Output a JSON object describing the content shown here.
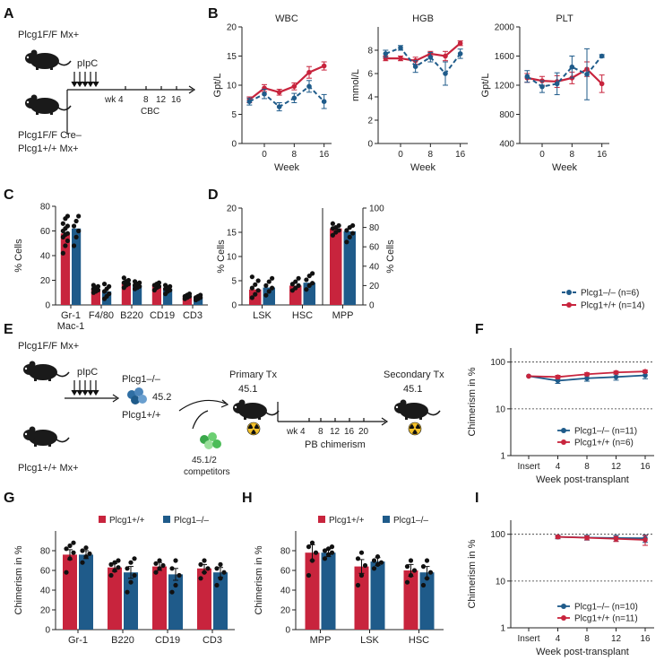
{
  "colors": {
    "red": "#c8243d",
    "blue": "#1f5b8a",
    "dot": "#111111",
    "bg": "#ffffff"
  },
  "icons": [
    "mouse-icon",
    "injection-arrows-icon",
    "cell-cluster-icon",
    "radiation-icon"
  ],
  "panel_letters": [
    "A",
    "B",
    "C",
    "D",
    "E",
    "F",
    "G",
    "H",
    "I"
  ],
  "panelA": {
    "mouse1_label": "Plcg1F/F Mx+",
    "treatment": "pIpC",
    "timeline_ticks": [
      "wk 4",
      "8",
      "12",
      "16"
    ],
    "readout": "CBC",
    "mouse2_label_line1": "Plcg1F/F Cre–",
    "mouse2_label_line2": "Plcg1+/+ Mx+"
  },
  "panelE": {
    "mouse1_label": "Plcg1F/F Mx+",
    "mouse2_label": "Plcg1+/+ Mx+",
    "treatment": "pIpC",
    "cells_top": "Plcg1–/–",
    "cells_bottom": "Plcg1+/+",
    "donor_marker": "45.2",
    "competitor_line1": "45.1/2",
    "competitor_line2": "competitors",
    "primary_title": "Primary Tx",
    "primary_marker": "45.1",
    "timeline_ticks": [
      "wk 4",
      "8",
      "12",
      "16",
      "20"
    ],
    "readout": "PB chimerism",
    "secondary_title": "Secondary Tx",
    "secondary_marker": "45.1"
  },
  "chart_data": [
    {
      "id": "B-WBC",
      "type": "line",
      "title": "WBC",
      "xlabel": "Week",
      "ylabel": "Gpt/L",
      "x": [
        -4,
        0,
        4,
        8,
        12,
        16
      ],
      "xticks": [
        0,
        8,
        16
      ],
      "ylim": [
        0,
        20
      ],
      "yticks": [
        0,
        5,
        10,
        15,
        20
      ],
      "series": [
        {
          "name": "Plcg1–/–",
          "values": [
            7.2,
            8.5,
            6.3,
            7.8,
            9.8,
            7.2
          ],
          "err": [
            0.6,
            0.8,
            0.7,
            0.8,
            1.0,
            1.2
          ]
        },
        {
          "name": "Plcg1+/+",
          "values": [
            7.5,
            9.5,
            8.8,
            9.8,
            12.2,
            13.3
          ],
          "err": [
            0.5,
            0.6,
            0.5,
            0.6,
            1.0,
            0.7
          ]
        }
      ]
    },
    {
      "id": "B-HGB",
      "type": "line",
      "title": "HGB",
      "xlabel": "Week",
      "ylabel": "mmol/L",
      "x": [
        -4,
        0,
        4,
        8,
        12,
        16
      ],
      "xticks": [
        0,
        8,
        16
      ],
      "ylim": [
        0,
        10
      ],
      "yticks": [
        0,
        2,
        4,
        6,
        8
      ],
      "series": [
        {
          "name": "Plcg1–/–",
          "values": [
            7.7,
            8.2,
            6.6,
            7.4,
            6.0,
            7.7
          ],
          "err": [
            0.3,
            0.2,
            0.5,
            0.4,
            1.0,
            0.4
          ]
        },
        {
          "name": "Plcg1+/+",
          "values": [
            7.3,
            7.3,
            7.1,
            7.7,
            7.5,
            8.6
          ],
          "err": [
            0.2,
            0.2,
            0.3,
            0.2,
            0.4,
            0.2
          ]
        }
      ]
    },
    {
      "id": "B-PLT",
      "type": "line",
      "title": "PLT",
      "xlabel": "Week",
      "ylabel": "Gpt/L",
      "x": [
        -4,
        0,
        4,
        8,
        12,
        16
      ],
      "xticks": [
        0,
        8,
        16
      ],
      "ylim": [
        400,
        2000
      ],
      "yticks": [
        400,
        800,
        1200,
        1600,
        2000
      ],
      "series": [
        {
          "name": "Plcg1–/–",
          "values": [
            1320,
            1180,
            1220,
            1450,
            1350,
            1600
          ],
          "err": [
            80,
            80,
            150,
            150,
            350,
            20
          ]
        },
        {
          "name": "Plcg1+/+",
          "values": [
            1300,
            1260,
            1250,
            1300,
            1420,
            1220
          ],
          "err": [
            60,
            60,
            80,
            80,
            100,
            120
          ]
        }
      ],
      "legend": [
        "Plcg1–/– (n=6)",
        "Plcg1+/+ (n=14)"
      ],
      "legend_position": "bottom-right"
    },
    {
      "id": "C",
      "type": "bar",
      "ylabel": "% Cells",
      "ylim": [
        0,
        80
      ],
      "yticks": [
        0,
        20,
        40,
        60,
        80
      ],
      "categories": [
        "Gr-1 Mac-1",
        "F4/80",
        "B220",
        "CD19",
        "CD3"
      ],
      "category_lines": [
        [
          "Gr-1",
          "Mac-1"
        ],
        [
          "F4/80"
        ],
        [
          "B220"
        ],
        [
          "CD19"
        ],
        [
          "CD3"
        ]
      ],
      "series": [
        {
          "name": "Plcg1+/+",
          "values": [
            58,
            13,
            18,
            16,
            7
          ]
        },
        {
          "name": "Plcg1–/–",
          "values": [
            62,
            11,
            16,
            13,
            6
          ]
        }
      ],
      "points": [
        [
          [
            42,
            48,
            52,
            55,
            57,
            58,
            60,
            62,
            64,
            66,
            70,
            72
          ],
          [
            48,
            55,
            60,
            64,
            68,
            72
          ]
        ],
        [
          [
            10,
            11,
            12,
            13,
            14,
            15,
            16
          ],
          [
            5,
            7,
            9,
            11,
            13,
            15,
            17
          ]
        ],
        [
          [
            14,
            16,
            17,
            18,
            19,
            20,
            22
          ],
          [
            13,
            14,
            15,
            16,
            17,
            18,
            19
          ]
        ],
        [
          [
            12,
            14,
            15,
            16,
            17,
            18
          ],
          [
            9,
            11,
            12,
            13,
            14,
            15,
            16
          ]
        ],
        [
          [
            5,
            6,
            7,
            7,
            8,
            9
          ],
          [
            4,
            5,
            6,
            6,
            7,
            8
          ]
        ]
      ]
    },
    {
      "id": "D",
      "type": "bar",
      "ylabel": "% Cells",
      "ylim": [
        0,
        20
      ],
      "yticks": [
        0,
        5,
        10,
        15,
        20
      ],
      "ylabel_right": "% Cells",
      "ylim_right": [
        0,
        100
      ],
      "yticks_right": [
        0,
        20,
        40,
        60,
        80,
        100
      ],
      "categories": [
        "LSK",
        "HSC",
        "MPP"
      ],
      "series": [
        {
          "name": "Plcg1+/+",
          "values": [
            3.2,
            4.0,
            79
          ]
        },
        {
          "name": "Plcg1–/–",
          "values": [
            3.6,
            4.6,
            76
          ]
        }
      ],
      "points": [
        [
          [
            1.5,
            2.2,
            3.0,
            3.5,
            4.2,
            5.0,
            5.8
          ],
          [
            2.0,
            2.8,
            3.5,
            4.0,
            4.8,
            5.5
          ]
        ],
        [
          [
            3.0,
            3.5,
            4.0,
            4.3,
            4.8,
            5.5
          ],
          [
            3.2,
            4.0,
            4.5,
            5.2,
            6.0,
            6.5
          ]
        ],
        [
          [
            72,
            75,
            77,
            79,
            80,
            82,
            84
          ],
          [
            65,
            70,
            74,
            77,
            80,
            82
          ]
        ]
      ]
    },
    {
      "id": "F",
      "type": "line",
      "xlabel": "Week post-transplant",
      "ylabel": "Chimerism in %",
      "categories": [
        "Insert",
        "4",
        "8",
        "12",
        "16"
      ],
      "yscale": "log",
      "ylim": [
        1,
        100
      ],
      "yticks": [
        1,
        10,
        100
      ],
      "reference_lines": [
        10,
        100
      ],
      "series": [
        {
          "name": "Plcg1–/–",
          "values": [
            50,
            40,
            45,
            48,
            52
          ],
          "err": [
            0,
            5,
            6,
            7,
            8
          ]
        },
        {
          "name": "Plcg1+/+",
          "values": [
            50,
            48,
            55,
            60,
            63
          ],
          "err": [
            0,
            4,
            4,
            4,
            4
          ]
        }
      ],
      "legend": [
        "Plcg1–/– (n=11)",
        "Plcg1+/+ (n=6)"
      ],
      "legend_position": "bottom-right"
    },
    {
      "id": "G",
      "type": "bar",
      "ylabel": "Chimerism in %",
      "ylim": [
        0,
        100
      ],
      "yticks": [
        0,
        20,
        40,
        60,
        80
      ],
      "categories": [
        "Gr-1",
        "B220",
        "CD19",
        "CD3"
      ],
      "legend": [
        "Plcg1+/+",
        "Plcg1–/–"
      ],
      "legend_position": "top",
      "series": [
        {
          "name": "Plcg1+/+",
          "values": [
            76,
            63,
            64,
            62
          ],
          "err": [
            5,
            4,
            4,
            4
          ]
        },
        {
          "name": "Plcg1–/–",
          "values": [
            76,
            58,
            56,
            58
          ],
          "err": [
            4,
            6,
            6,
            5
          ]
        }
      ],
      "points": [
        [
          [
            58,
            72,
            78,
            82,
            85,
            88
          ],
          [
            68,
            74,
            77,
            80,
            83
          ]
        ],
        [
          [
            55,
            60,
            63,
            66,
            68,
            70
          ],
          [
            38,
            48,
            55,
            62,
            68,
            72
          ]
        ],
        [
          [
            58,
            62,
            65,
            67,
            70
          ],
          [
            38,
            45,
            55,
            62,
            70
          ]
        ],
        [
          [
            52,
            58,
            62,
            66,
            70
          ],
          [
            45,
            52,
            58,
            62,
            66
          ]
        ]
      ]
    },
    {
      "id": "H",
      "type": "bar",
      "ylabel": "Chimerism in %",
      "ylim": [
        0,
        100
      ],
      "yticks": [
        0,
        20,
        40,
        60,
        80
      ],
      "categories": [
        "MPP",
        "LSK",
        "HSC"
      ],
      "legend": [
        "Plcg1+/+",
        "Plcg1–/–"
      ],
      "legend_position": "top",
      "series": [
        {
          "name": "Plcg1+/+",
          "values": [
            78,
            64,
            60
          ],
          "err": [
            8,
            7,
            6
          ]
        },
        {
          "name": "Plcg1–/–",
          "values": [
            78,
            69,
            58
          ],
          "err": [
            4,
            4,
            6
          ]
        }
      ],
      "points": [
        [
          [
            55,
            70,
            78,
            84,
            88
          ],
          [
            72,
            76,
            78,
            80,
            82,
            84
          ]
        ],
        [
          [
            45,
            55,
            65,
            72,
            78
          ],
          [
            62,
            66,
            68,
            70,
            74
          ]
        ],
        [
          [
            48,
            55,
            60,
            64,
            70
          ],
          [
            45,
            52,
            58,
            64,
            70
          ]
        ]
      ]
    },
    {
      "id": "I",
      "type": "line",
      "xlabel": "Week post-transplant",
      "ylabel": "Chimerism in %",
      "categories": [
        "Insert",
        "4",
        "8",
        "12",
        "16"
      ],
      "yscale": "log",
      "ylim": [
        1,
        100
      ],
      "yticks": [
        1,
        10,
        100
      ],
      "reference_lines": [
        10,
        100
      ],
      "series": [
        {
          "name": "Plcg1–/–",
          "values": [
            null,
            88,
            85,
            83,
            82
          ],
          "err": [
            null,
            8,
            10,
            12,
            15
          ]
        },
        {
          "name": "Plcg1+/+",
          "values": [
            null,
            88,
            84,
            80,
            76
          ],
          "err": [
            null,
            6,
            8,
            10,
            18
          ]
        }
      ],
      "legend": [
        "Plcg1–/– (n=10)",
        "Plcg1+/+ (n=11)"
      ],
      "legend_position": "bottom-right"
    }
  ]
}
